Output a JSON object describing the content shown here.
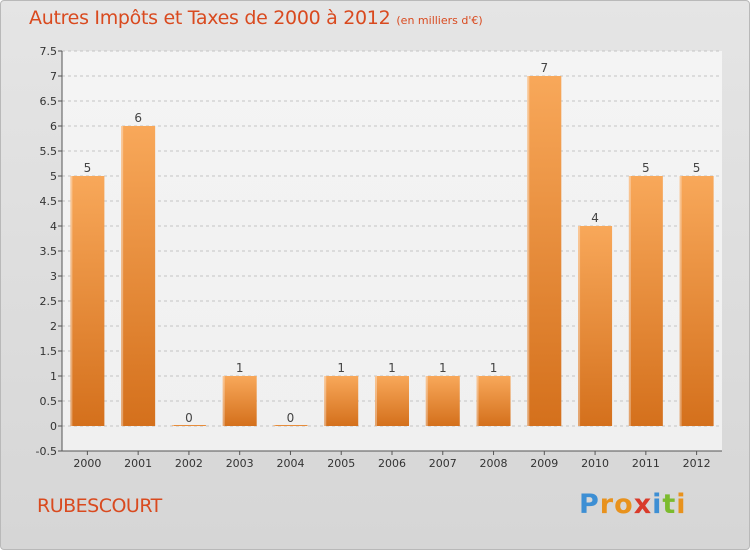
{
  "title": "Autres Impôts et Taxes de 2000 à 2012",
  "subtitle": "(en milliers d'€)",
  "town": "RUBESCOURT",
  "logo": {
    "letters": [
      "P",
      "r",
      "o",
      "x",
      "i",
      "t",
      "i"
    ],
    "colors": [
      "#3d8fd4",
      "#e8921d",
      "#e8921d",
      "#d93a2a",
      "#3d8fd4",
      "#7cbb2e",
      "#e8921d"
    ]
  },
  "colors": {
    "title": "#d94a1f",
    "bar_light": "#f8a85a",
    "bar_dark": "#d4701c",
    "background": "#dedede"
  },
  "chart_data": {
    "type": "bar",
    "categories": [
      "2000",
      "2001",
      "2002",
      "2003",
      "2004",
      "2005",
      "2006",
      "2007",
      "2008",
      "2009",
      "2010",
      "2011",
      "2012"
    ],
    "values": [
      5,
      6,
      0,
      1,
      0,
      1,
      1,
      1,
      1,
      7,
      4,
      5,
      5
    ],
    "data_labels": [
      "5",
      "6",
      "0",
      "1",
      "0",
      "1",
      "1",
      "1",
      "1",
      "7",
      "4",
      "5",
      "5"
    ],
    "yticks": [
      "-0.5",
      "0",
      "0.5",
      "1",
      "1.5",
      "2",
      "2.5",
      "3",
      "3.5",
      "4",
      "4.5",
      "5",
      "5.5",
      "6",
      "6.5",
      "7",
      "7.5"
    ],
    "ytick_values": [
      -0.5,
      0,
      0.5,
      1,
      1.5,
      2,
      2.5,
      3,
      3.5,
      4,
      4.5,
      5,
      5.5,
      6,
      6.5,
      7,
      7.5
    ],
    "ylim": [
      -0.5,
      7.5
    ],
    "grid": "horizontal dashed"
  }
}
